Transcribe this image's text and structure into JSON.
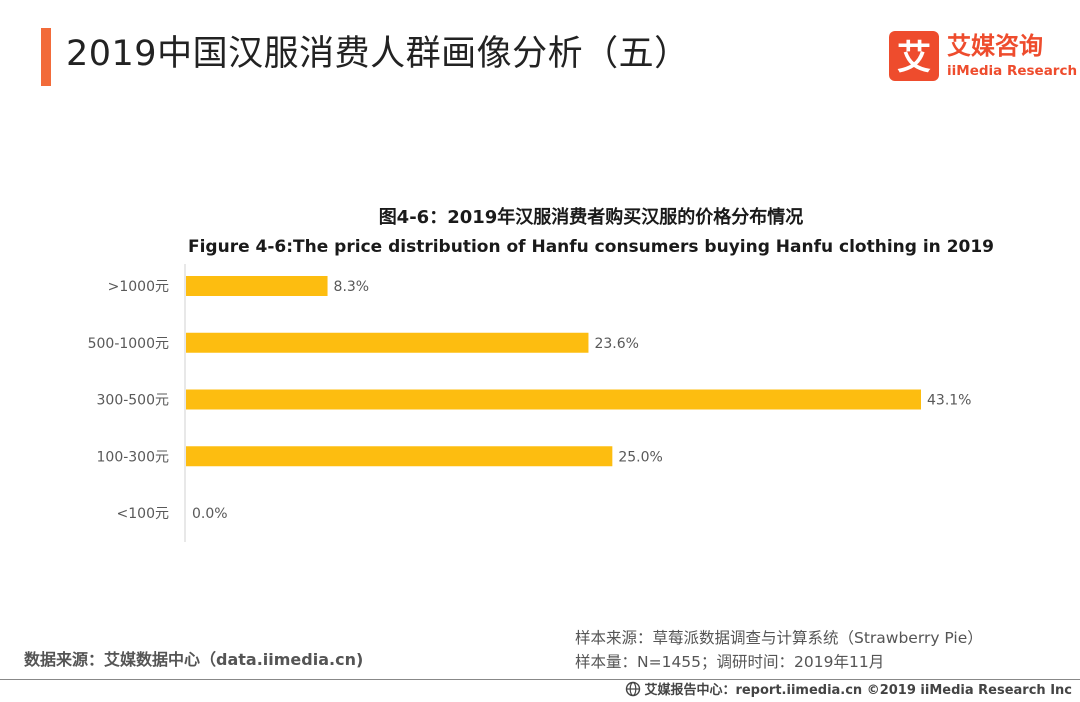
{
  "page_title": "2019中国汉服消费人群画像分析（五）",
  "brand": {
    "logo_glyph": "艾",
    "name_cn": "艾媒咨询",
    "name_en": "iiMedia Research",
    "accent_color": "#ee4c2d"
  },
  "chart_data": {
    "type": "bar",
    "orientation": "horizontal",
    "title": "图4-6：2019年汉服消费者购买汉服的价格分布情况",
    "subtitle": "Figure 4-6:The price distribution of Hanfu consumers buying Hanfu clothing in 2019",
    "categories": [
      ">1000元",
      "500-1000元",
      "300-500元",
      "100-300元",
      "<100元"
    ],
    "values": [
      8.3,
      23.6,
      43.1,
      25.0,
      0.0
    ],
    "value_labels": [
      "8.3%",
      "23.6%",
      "43.1%",
      "25.0%",
      "0.0%"
    ],
    "bar_color": "#fdbd10",
    "grid": false,
    "legend": "none"
  },
  "footer": {
    "data_source": "数据来源：艾媒数据中心（data.iimedia.cn)",
    "sample_source": "样本来源：草莓派数据调查与计算系统（Strawberry Pie）",
    "sample_size": "样本量：N=1455；调研时间：2019年11月",
    "copyright": "艾媒报告中心：report.iimedia.cn  ©2019  iiMedia Research  Inc",
    "copyright_icon": "globe-icon"
  }
}
